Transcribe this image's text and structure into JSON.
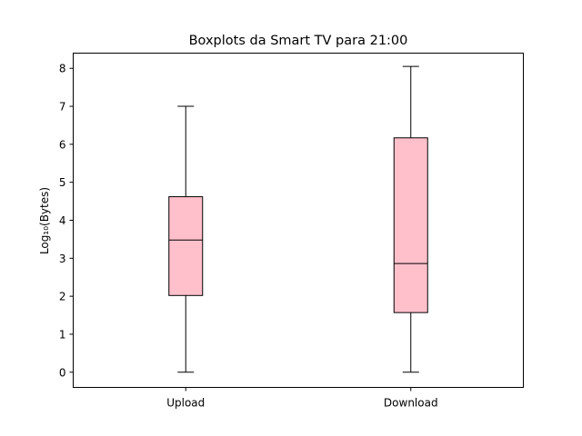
{
  "chart_data": {
    "type": "boxplot",
    "title": "Boxplots da Smart TV para 21:00",
    "xlabel": "",
    "ylabel": "Log₁₀(Bytes)",
    "categories": [
      "Upload",
      "Download"
    ],
    "ylim": [
      -0.4,
      8.4
    ],
    "yticks": [
      0,
      1,
      2,
      3,
      4,
      5,
      6,
      7,
      8
    ],
    "grid": false,
    "box_color": "#ffc0cb",
    "edge_color": "#000000",
    "boxes": [
      {
        "label": "Upload",
        "whislo": 0.0,
        "q1": 2.02,
        "median": 3.48,
        "q3": 4.62,
        "whishi": 7.0
      },
      {
        "label": "Download",
        "whislo": 0.0,
        "q1": 1.57,
        "median": 2.86,
        "q3": 6.17,
        "whishi": 8.05
      }
    ]
  }
}
